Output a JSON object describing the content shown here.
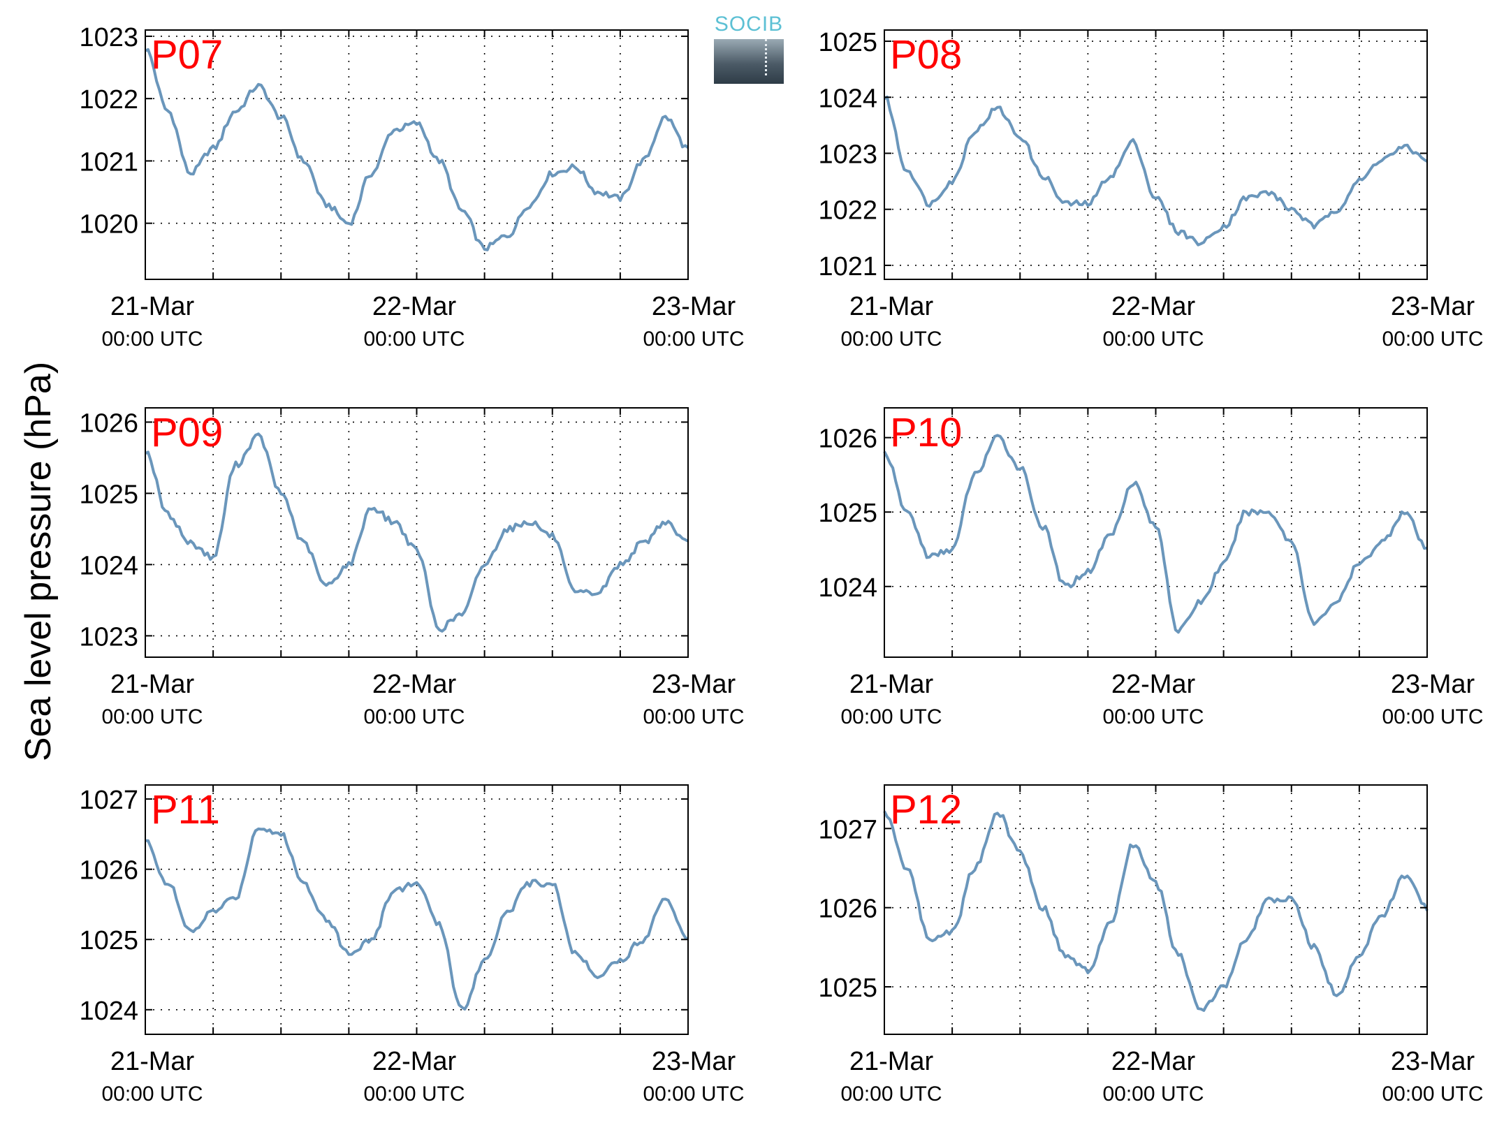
{
  "ylabel": "Sea level pressure (hPa)",
  "logo": {
    "text": "SOCIB"
  },
  "colors": {
    "line": "#6a96bb",
    "station_label": "#ff0000"
  },
  "chart_data": [
    {
      "type": "line",
      "title": "P07",
      "xlim": [
        "2014-03-21T00:00",
        "2014-03-23T00:00"
      ],
      "ylim": [
        1019.1,
        1023.1
      ],
      "yticks": [
        1020,
        1021,
        1022,
        1023
      ],
      "xticks": [
        {
          "date": "21-Mar",
          "time": "00:00 UTC"
        },
        {
          "date": "22-Mar",
          "time": "00:00 UTC"
        },
        {
          "date": "23-Mar",
          "time": "00:00 UTC"
        }
      ],
      "grid": true,
      "x_hours": [
        0,
        2,
        4,
        6,
        8,
        10,
        12,
        14,
        16,
        18,
        20,
        22,
        24,
        26,
        28,
        30,
        32,
        34,
        36,
        38,
        40,
        42,
        44,
        46,
        48
      ],
      "values": [
        1022.8,
        1021.8,
        1020.8,
        1021.2,
        1021.8,
        1022.2,
        1021.7,
        1021.0,
        1020.3,
        1020.0,
        1020.8,
        1021.5,
        1021.6,
        1021.0,
        1020.2,
        1019.6,
        1019.8,
        1020.3,
        1020.8,
        1020.9,
        1020.5,
        1020.4,
        1021.0,
        1021.7,
        1021.2
      ]
    },
    {
      "type": "line",
      "title": "P08",
      "xlim": [
        "2014-03-21T00:00",
        "2014-03-23T00:00"
      ],
      "ylim": [
        1020.75,
        1025.2
      ],
      "yticks": [
        1021,
        1022,
        1023,
        1024,
        1025
      ],
      "xticks": [
        {
          "date": "21-Mar",
          "time": "00:00 UTC"
        },
        {
          "date": "22-Mar",
          "time": "00:00 UTC"
        },
        {
          "date": "23-Mar",
          "time": "00:00 UTC"
        }
      ],
      "grid": true,
      "x_hours": [
        0,
        2,
        4,
        6,
        8,
        10,
        12,
        14,
        16,
        18,
        20,
        22,
        24,
        26,
        28,
        30,
        32,
        34,
        36,
        38,
        40,
        42,
        44,
        46,
        48
      ],
      "values": [
        1024.0,
        1022.7,
        1022.1,
        1022.5,
        1023.4,
        1023.8,
        1023.3,
        1022.6,
        1022.1,
        1022.1,
        1022.6,
        1023.2,
        1022.2,
        1021.6,
        1021.4,
        1021.7,
        1022.2,
        1022.3,
        1022.0,
        1021.7,
        1022.0,
        1022.5,
        1022.9,
        1023.1,
        1022.9
      ]
    },
    {
      "type": "line",
      "title": "P09",
      "xlim": [
        "2014-03-21T00:00",
        "2014-03-23T00:00"
      ],
      "ylim": [
        1022.7,
        1026.2
      ],
      "yticks": [
        1023,
        1024,
        1025,
        1026
      ],
      "xticks": [
        {
          "date": "21-Mar",
          "time": "00:00 UTC"
        },
        {
          "date": "22-Mar",
          "time": "00:00 UTC"
        },
        {
          "date": "23-Mar",
          "time": "00:00 UTC"
        }
      ],
      "grid": true,
      "x_hours": [
        0,
        2,
        4,
        6,
        8,
        10,
        12,
        14,
        16,
        18,
        20,
        22,
        24,
        26,
        28,
        30,
        32,
        34,
        36,
        38,
        40,
        42,
        44,
        46,
        48
      ],
      "values": [
        1025.6,
        1024.7,
        1024.3,
        1024.1,
        1025.4,
        1025.8,
        1025.0,
        1024.3,
        1023.7,
        1024.0,
        1024.8,
        1024.6,
        1024.2,
        1023.1,
        1023.3,
        1024.0,
        1024.5,
        1024.6,
        1024.4,
        1023.6,
        1023.6,
        1024.0,
        1024.3,
        1024.6,
        1024.3
      ]
    },
    {
      "type": "line",
      "title": "P10",
      "xlim": [
        "2014-03-21T00:00",
        "2014-03-23T00:00"
      ],
      "ylim": [
        1023.05,
        1026.4
      ],
      "yticks": [
        1024,
        1025,
        1026
      ],
      "xticks": [
        {
          "date": "21-Mar",
          "time": "00:00 UTC"
        },
        {
          "date": "22-Mar",
          "time": "00:00 UTC"
        },
        {
          "date": "23-Mar",
          "time": "00:00 UTC"
        }
      ],
      "grid": true,
      "x_hours": [
        0,
        2,
        4,
        6,
        8,
        10,
        12,
        14,
        16,
        18,
        20,
        22,
        24,
        26,
        28,
        30,
        32,
        34,
        36,
        38,
        40,
        42,
        44,
        46,
        48
      ],
      "values": [
        1025.8,
        1025.0,
        1024.4,
        1024.5,
        1025.5,
        1026.0,
        1025.6,
        1024.8,
        1024.0,
        1024.2,
        1024.7,
        1025.4,
        1024.8,
        1023.4,
        1023.8,
        1024.3,
        1025.0,
        1025.0,
        1024.6,
        1023.5,
        1023.8,
        1024.3,
        1024.6,
        1025.0,
        1024.5
      ]
    },
    {
      "type": "line",
      "title": "P11",
      "xlim": [
        "2014-03-21T00:00",
        "2014-03-23T00:00"
      ],
      "ylim": [
        1023.65,
        1027.2
      ],
      "yticks": [
        1024,
        1025,
        1026,
        1027
      ],
      "xticks": [
        {
          "date": "21-Mar",
          "time": "00:00 UTC"
        },
        {
          "date": "22-Mar",
          "time": "00:00 UTC"
        },
        {
          "date": "23-Mar",
          "time": "00:00 UTC"
        }
      ],
      "grid": true,
      "x_hours": [
        0,
        2,
        4,
        6,
        8,
        10,
        12,
        14,
        16,
        18,
        20,
        22,
        24,
        26,
        28,
        30,
        32,
        34,
        36,
        38,
        40,
        42,
        44,
        46,
        48
      ],
      "values": [
        1026.4,
        1025.8,
        1025.1,
        1025.4,
        1025.6,
        1026.6,
        1026.5,
        1025.8,
        1025.3,
        1024.8,
        1025.0,
        1025.7,
        1025.8,
        1025.2,
        1024.0,
        1024.7,
        1025.4,
        1025.8,
        1025.8,
        1024.8,
        1024.5,
        1024.7,
        1025.0,
        1025.6,
        1025.0
      ]
    },
    {
      "type": "line",
      "title": "P12",
      "xlim": [
        "2014-03-21T00:00",
        "2014-03-23T00:00"
      ],
      "ylim": [
        1024.4,
        1027.55
      ],
      "yticks": [
        1025,
        1026,
        1027
      ],
      "xticks": [
        {
          "date": "21-Mar",
          "time": "00:00 UTC"
        },
        {
          "date": "22-Mar",
          "time": "00:00 UTC"
        },
        {
          "date": "23-Mar",
          "time": "00:00 UTC"
        }
      ],
      "grid": true,
      "x_hours": [
        0,
        2,
        4,
        6,
        8,
        10,
        12,
        14,
        16,
        18,
        20,
        22,
        24,
        26,
        28,
        30,
        32,
        34,
        36,
        38,
        40,
        42,
        44,
        46,
        48
      ],
      "values": [
        1027.2,
        1026.5,
        1025.6,
        1025.7,
        1026.5,
        1027.2,
        1026.7,
        1026.0,
        1025.4,
        1025.2,
        1025.8,
        1026.8,
        1026.3,
        1025.4,
        1024.7,
        1025.0,
        1025.6,
        1026.1,
        1026.1,
        1025.5,
        1024.9,
        1025.4,
        1025.9,
        1026.4,
        1026.0
      ]
    }
  ]
}
